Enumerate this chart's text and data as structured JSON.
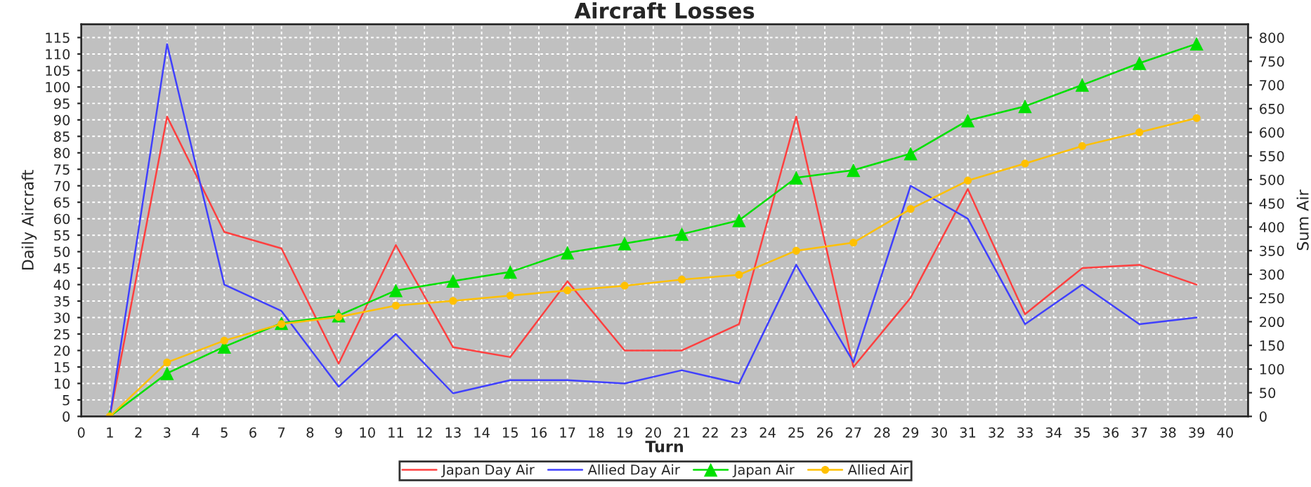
{
  "chart_data": {
    "type": "line",
    "title": "Aircraft Losses",
    "xlabel": "Turn",
    "ylabel": "Daily Aircraft",
    "y2label": "Sum Air",
    "x": [
      1,
      3,
      5,
      7,
      9,
      11,
      13,
      15,
      17,
      19,
      21,
      23,
      25,
      27,
      29,
      31,
      33,
      35,
      37,
      39
    ],
    "xlim": [
      0,
      40.8
    ],
    "xticks": [
      0,
      1,
      2,
      3,
      4,
      5,
      6,
      7,
      8,
      9,
      10,
      11,
      12,
      13,
      14,
      15,
      16,
      17,
      18,
      19,
      20,
      21,
      22,
      23,
      24,
      25,
      26,
      27,
      28,
      29,
      30,
      31,
      32,
      33,
      34,
      35,
      36,
      37,
      38,
      39,
      40
    ],
    "ylim": [
      0,
      119
    ],
    "yticks": [
      0,
      5,
      10,
      15,
      20,
      25,
      30,
      35,
      40,
      45,
      50,
      55,
      60,
      65,
      70,
      75,
      80,
      85,
      90,
      95,
      100,
      105,
      110,
      115
    ],
    "y2lim": [
      0,
      828
    ],
    "y2ticks": [
      0,
      50,
      100,
      150,
      200,
      250,
      300,
      350,
      400,
      450,
      500,
      550,
      600,
      650,
      700,
      750,
      800
    ],
    "grid": true,
    "legend": "bottom",
    "series": [
      {
        "name": "Japan Day Air",
        "color": "#ff4040",
        "marker": "none",
        "values": [
          0,
          91,
          56,
          51,
          16,
          52,
          21,
          18,
          41,
          20,
          20,
          28,
          91,
          15,
          36,
          69,
          31,
          45,
          46,
          40
        ]
      },
      {
        "name": "Allied Day Air",
        "color": "#4040ff",
        "marker": "none",
        "values": [
          0,
          113,
          40,
          32,
          9,
          25,
          7,
          11,
          11,
          10,
          14,
          10,
          46,
          16.5,
          70,
          60,
          28,
          40,
          28,
          30
        ]
      },
      {
        "name": "Japan Air",
        "color": "#00e000",
        "marker": "triangle",
        "axis": "y2",
        "values": [
          0,
          91,
          147,
          197,
          213,
          266,
          286,
          305,
          346,
          365,
          385,
          414,
          504,
          520,
          555,
          625,
          655,
          700,
          746,
          787
        ]
      },
      {
        "name": "Allied Air",
        "color": "#ffc000",
        "marker": "circle",
        "axis": "y2",
        "values": [
          0,
          114,
          160,
          195,
          210,
          234,
          244,
          255,
          266,
          276,
          289,
          299,
          350,
          367,
          438,
          498,
          534,
          571,
          600,
          630
        ]
      }
    ]
  }
}
